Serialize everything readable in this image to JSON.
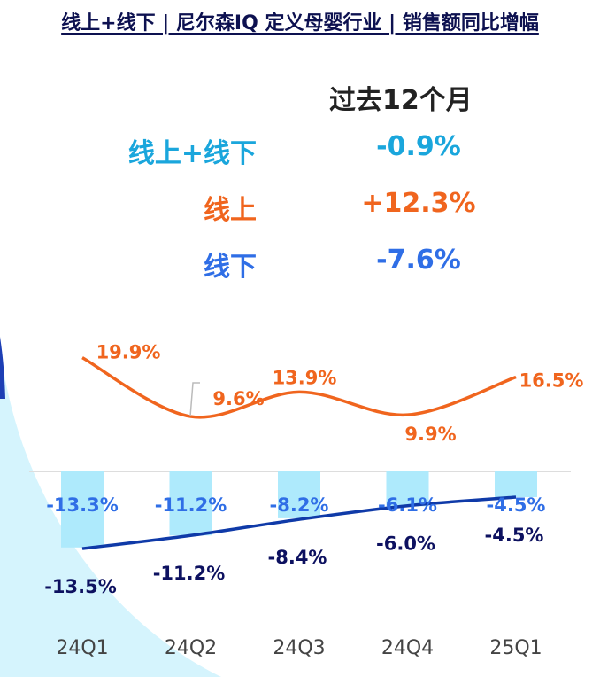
{
  "title": "线上+线下 | 尼尔森IQ 定义母婴行业 | 销售额同比增幅",
  "summary": {
    "header": "过去12个月",
    "rows": [
      {
        "label": "线上+线下",
        "value": "-0.9%",
        "color": "#1aa6dc"
      },
      {
        "label": "线上",
        "value": "+12.3%",
        "color": "#f0651e"
      },
      {
        "label": "线下",
        "value": "-7.6%",
        "color": "#2f6ee6"
      }
    ]
  },
  "chart_data": {
    "type": "bar+line",
    "categories": [
      "24Q1",
      "24Q2",
      "24Q3",
      "24Q4",
      "25Q1"
    ],
    "series": [
      {
        "type": "line",
        "values": [
          19.9,
          9.6,
          13.9,
          9.9,
          16.5
        ],
        "labels": [
          "19.9%",
          "9.6%",
          "13.9%",
          "9.9%",
          "16.5%"
        ],
        "color": "#f0651e",
        "label_color": "#f0651e"
      },
      {
        "type": "bar",
        "values": [
          -13.3,
          -11.2,
          -8.2,
          -6.1,
          -4.5
        ],
        "labels": [
          "-13.3%",
          "-11.2%",
          "-8.2%",
          "-6.1%",
          "-4.5%"
        ],
        "color": "#aeeafc",
        "label_color": "#2f6ee6"
      },
      {
        "type": "line",
        "values": [
          -13.5,
          -11.2,
          -8.4,
          -6.0,
          -4.5
        ],
        "labels": [
          "-13.5%",
          "-11.2%",
          "-8.4%",
          "-6.0%",
          "-4.5%"
        ],
        "color": "#0f3aa8",
        "label_color": "#0d1160"
      }
    ],
    "grid": false
  }
}
